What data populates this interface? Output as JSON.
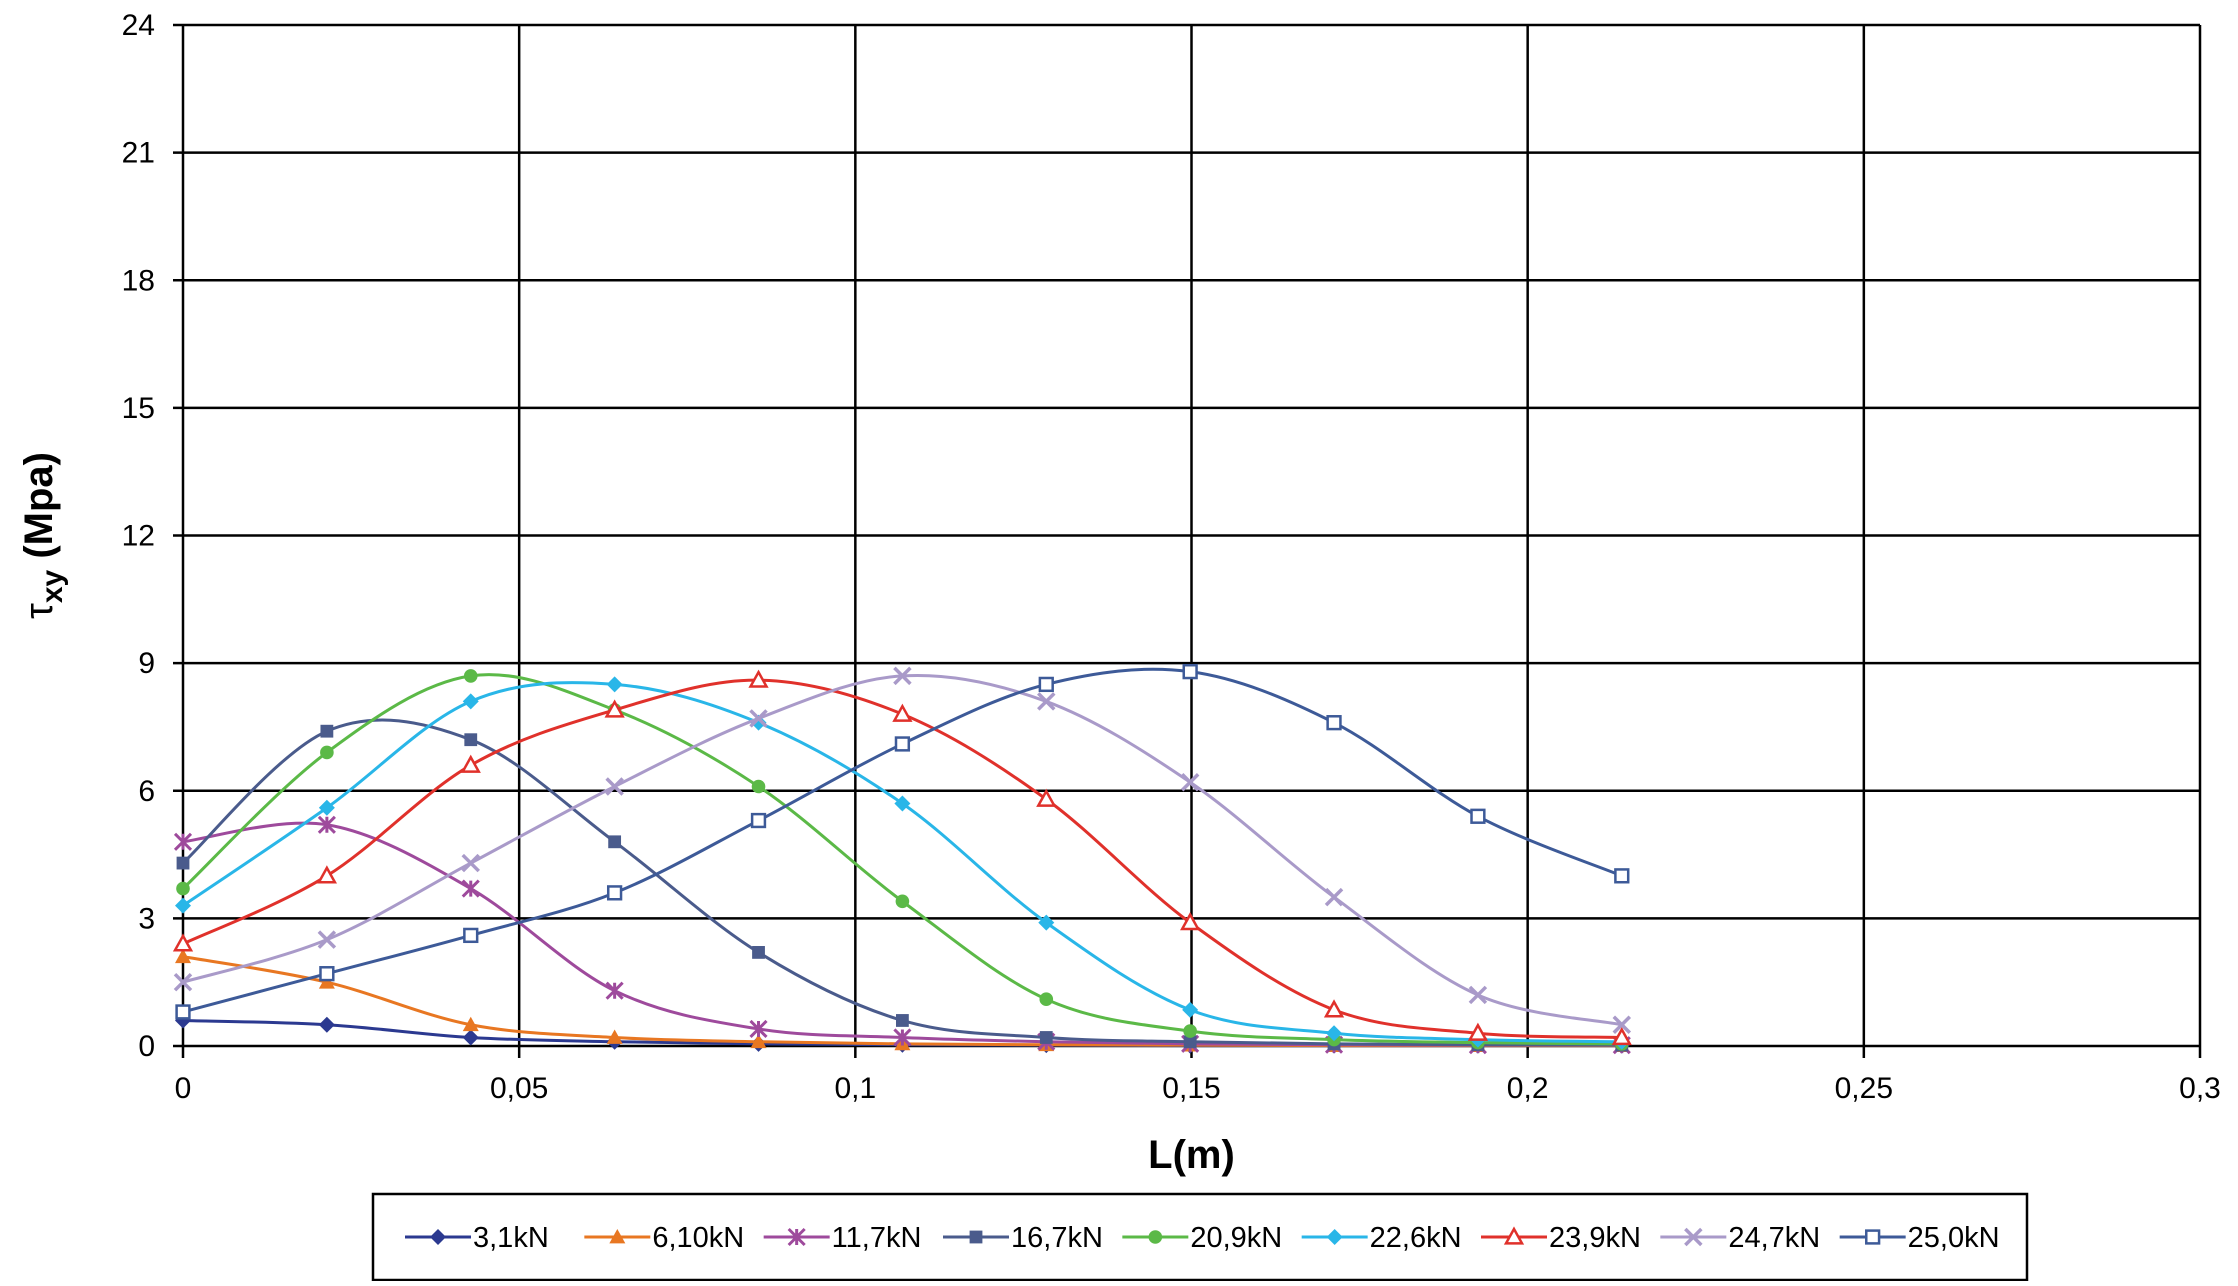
{
  "chart_data": {
    "type": "line",
    "xlabel": "L(m)",
    "ylabel_symbol": "τ",
    "ylabel_subscript": "xy",
    "ylabel_rest": " (Mpa)",
    "xlim": [
      0,
      0.3
    ],
    "ylim": [
      0,
      24
    ],
    "x_ticks": [
      0,
      0.05,
      0.1,
      0.15,
      0.2,
      0.25,
      0.3
    ],
    "x_tick_labels": [
      "0",
      "0,05",
      "0,1",
      "0,15",
      "0,2",
      "0,25",
      "0,3"
    ],
    "y_ticks": [
      0,
      3,
      6,
      9,
      12,
      15,
      18,
      21,
      24
    ],
    "y_tick_labels": [
      "0",
      "3",
      "6",
      "9",
      "12",
      "15",
      "18",
      "21",
      "24"
    ],
    "grid": true,
    "legend_position": "bottom",
    "x": [
      0,
      0.0214,
      0.0428,
      0.0642,
      0.0856,
      0.107,
      0.1284,
      0.1498,
      0.1712,
      0.1926,
      0.214
    ],
    "series": [
      {
        "name": "3,1kN",
        "color": "#2b3990",
        "marker": "diamond",
        "values": [
          0.6,
          0.5,
          0.2,
          0.1,
          0.05,
          0.03,
          0.02,
          0.01,
          0.01,
          0.01,
          0.01
        ]
      },
      {
        "name": "6,10kN",
        "color": "#e87722",
        "marker": "triangle",
        "values": [
          2.1,
          1.5,
          0.5,
          0.2,
          0.1,
          0.05,
          0.03,
          0.02,
          0.01,
          0.01,
          0.01
        ]
      },
      {
        "name": "11,7kN",
        "color": "#9e4a9c",
        "marker": "asterisk",
        "values": [
          4.8,
          5.2,
          3.7,
          1.3,
          0.4,
          0.2,
          0.1,
          0.05,
          0.03,
          0.02,
          0.02
        ]
      },
      {
        "name": "16,7kN",
        "color": "#4a5b8c",
        "marker": "square",
        "values": [
          4.3,
          7.4,
          7.2,
          4.8,
          2.2,
          0.6,
          0.2,
          0.1,
          0.05,
          0.03,
          0.02
        ]
      },
      {
        "name": "20,9kN",
        "color": "#5bb947",
        "marker": "circle",
        "values": [
          3.7,
          6.9,
          8.7,
          7.9,
          6.1,
          3.4,
          1.1,
          0.35,
          0.15,
          0.08,
          0.05
        ]
      },
      {
        "name": "22,6kN",
        "color": "#29b6e8",
        "marker": "diamond",
        "values": [
          3.3,
          5.6,
          8.1,
          8.5,
          7.6,
          5.7,
          2.9,
          0.85,
          0.3,
          0.15,
          0.1
        ]
      },
      {
        "name": "23,9kN",
        "color": "#e0312b",
        "marker": "triangle-open",
        "values": [
          2.4,
          4.0,
          6.6,
          7.9,
          8.6,
          7.8,
          5.8,
          2.9,
          0.85,
          0.3,
          0.2
        ]
      },
      {
        "name": "24,7kN",
        "color": "#a99ac9",
        "marker": "x",
        "values": [
          1.5,
          2.5,
          4.3,
          6.1,
          7.7,
          8.7,
          8.1,
          6.2,
          3.5,
          1.2,
          0.5
        ]
      },
      {
        "name": "25,0kN",
        "color": "#3d5a98",
        "marker": "square-open",
        "values": [
          0.8,
          1.7,
          2.6,
          3.6,
          5.3,
          7.1,
          8.5,
          8.8,
          7.6,
          5.4,
          4.0
        ]
      }
    ]
  }
}
